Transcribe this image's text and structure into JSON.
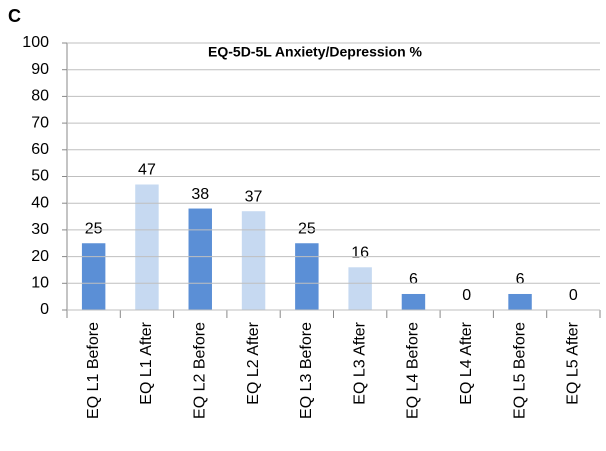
{
  "panel_label": "C",
  "chart_data": {
    "type": "bar",
    "title": "EQ-5D-5L Anxiety/Depression %",
    "categories": [
      "EQ L1 Before",
      "EQ L1 After",
      "EQ L2 Before",
      "EQ L2 After",
      "EQ L3 Before",
      "EQ L3 After",
      "EQ L4 Before",
      "EQ L4 After",
      "EQ L5 Before",
      "EQ L5 After"
    ],
    "values": [
      25,
      47,
      38,
      37,
      25,
      16,
      6,
      0,
      6,
      0
    ],
    "colors": [
      "#5b8fd6",
      "#c6d9f1",
      "#5b8fd6",
      "#c6d9f1",
      "#5b8fd6",
      "#c6d9f1",
      "#5b8fd6",
      "#c6d9f1",
      "#5b8fd6",
      "#c6d9f1"
    ],
    "ylim": [
      0,
      100
    ],
    "yticks": [
      0,
      10,
      20,
      30,
      40,
      50,
      60,
      70,
      80,
      90,
      100
    ],
    "grid": true
  }
}
